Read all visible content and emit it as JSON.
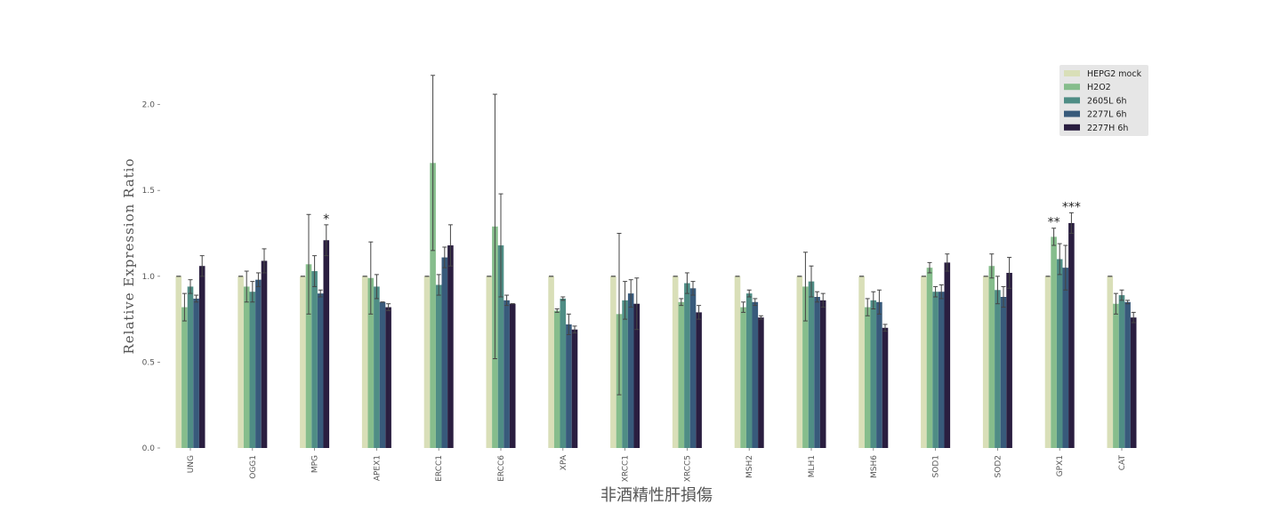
{
  "chart_data": {
    "type": "bar",
    "title": "",
    "xlabel": "非酒精性肝損傷",
    "ylabel": "Relative Expression Ratio",
    "ylim": [
      0,
      2.2
    ],
    "yticks": [
      0.0,
      0.5,
      1.0,
      1.5,
      2.0
    ],
    "ytick_labels": [
      "0.0",
      "0.5",
      "1.0",
      "1.5",
      "2.0"
    ],
    "grid": false,
    "legend_position": "top-right",
    "categories": [
      "UNG",
      "OGG1",
      "MPG",
      "APEX1",
      "ERCC1",
      "ERCC6",
      "XPA",
      "XRCC1",
      "XRCC5",
      "MSH2",
      "MLH1",
      "MSH6",
      "SOD1",
      "SOD2",
      "GPX1",
      "CAT"
    ],
    "series": [
      {
        "name": "HEPG2 mock",
        "color": "#d9dfb8",
        "values": [
          1.0,
          1.0,
          1.0,
          1.0,
          1.0,
          1.0,
          1.0,
          1.0,
          1.0,
          1.0,
          1.0,
          1.0,
          1.0,
          1.0,
          1.0,
          1.0
        ],
        "errors": [
          0,
          0,
          0,
          0,
          0,
          0,
          0,
          0,
          0,
          0,
          0,
          0,
          0,
          0,
          0,
          0
        ]
      },
      {
        "name": "H2O2",
        "color": "#86bd8c",
        "values": [
          0.82,
          0.94,
          1.07,
          0.99,
          1.66,
          1.29,
          0.8,
          0.78,
          0.85,
          0.82,
          0.94,
          0.82,
          1.05,
          1.06,
          1.23,
          0.84
        ],
        "errors": [
          0.08,
          0.09,
          0.29,
          0.21,
          0.51,
          0.77,
          0.01,
          0.47,
          0.02,
          0.03,
          0.2,
          0.05,
          0.03,
          0.07,
          0.05,
          0.06
        ]
      },
      {
        "name": "2605L 6h",
        "color": "#4f8d85",
        "values": [
          0.94,
          0.91,
          1.03,
          0.94,
          0.95,
          1.18,
          0.87,
          0.86,
          0.96,
          0.9,
          0.97,
          0.86,
          0.91,
          0.92,
          1.1,
          0.89
        ]
      },
      {
        "name": "2277L 6h",
        "color": "#385a7b",
        "values": [
          0.87,
          0.98,
          0.9,
          0.85,
          1.11,
          0.86,
          0.72,
          0.9,
          0.93,
          0.85,
          0.88,
          0.85,
          0.91,
          0.88,
          1.05,
          0.85
        ]
      },
      {
        "name": "2277H 6h",
        "color": "#2a1e40",
        "values": [
          1.06,
          1.09,
          1.21,
          0.82,
          1.18,
          0.84,
          0.69,
          0.84,
          0.79,
          0.76,
          0.86,
          0.7,
          1.08,
          1.02,
          1.31,
          0.76
        ]
      }
    ],
    "errors_by_series": {
      "2605L 6h": [
        0.04,
        0.06,
        0.09,
        0.07,
        0.06,
        0.3,
        0.01,
        0.11,
        0.06,
        0.02,
        0.09,
        0.05,
        0.03,
        0.08,
        0.09,
        0.03
      ],
      "2277L 6h": [
        0.02,
        0.04,
        0.02,
        0.0,
        0.06,
        0.03,
        0.06,
        0.08,
        0.04,
        0.02,
        0.03,
        0.07,
        0.04,
        0.06,
        0.13,
        0.01
      ],
      "2277H 6h": [
        0.06,
        0.07,
        0.09,
        0.02,
        0.12,
        0.0,
        0.02,
        0.15,
        0.04,
        0.01,
        0.04,
        0.02,
        0.05,
        0.09,
        0.06,
        0.03
      ]
    },
    "annotations": [
      {
        "text": "*",
        "category": "MPG",
        "series": "2277H 6h"
      },
      {
        "text": "**",
        "category": "GPX1",
        "series": "H2O2"
      },
      {
        "text": "***",
        "category": "GPX1",
        "series": "2277H 6h"
      }
    ]
  }
}
